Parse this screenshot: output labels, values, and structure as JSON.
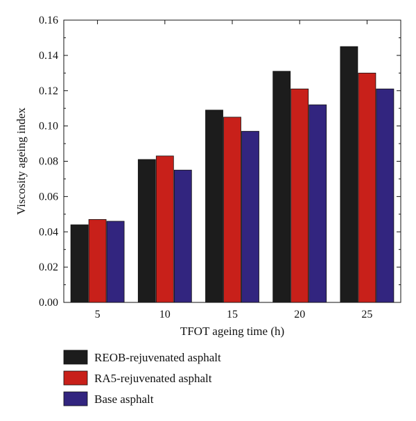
{
  "chart_data": {
    "type": "bar",
    "categories": [
      "5",
      "10",
      "15",
      "20",
      "25"
    ],
    "series": [
      {
        "name": "REOB-rejuvenated asphalt",
        "color": "#1c1c1c",
        "values": [
          0.044,
          0.081,
          0.109,
          0.131,
          0.145
        ]
      },
      {
        "name": "RA5-rejuvenated asphalt",
        "color": "#c8201a",
        "values": [
          0.047,
          0.083,
          0.105,
          0.121,
          0.13
        ]
      },
      {
        "name": "Base asphalt",
        "color": "#32257f",
        "values": [
          0.046,
          0.075,
          0.097,
          0.112,
          0.121
        ]
      }
    ],
    "xlabel": "TFOT ageing time (h)",
    "ylabel": "Viscosity ageing index",
    "ylim": [
      0,
      0.16
    ],
    "yticks": [
      "0.00",
      "0.02",
      "0.04",
      "0.06",
      "0.08",
      "0.10",
      "0.12",
      "0.14",
      "0.16"
    ],
    "grid": false,
    "legend_position": "bottom-left"
  }
}
